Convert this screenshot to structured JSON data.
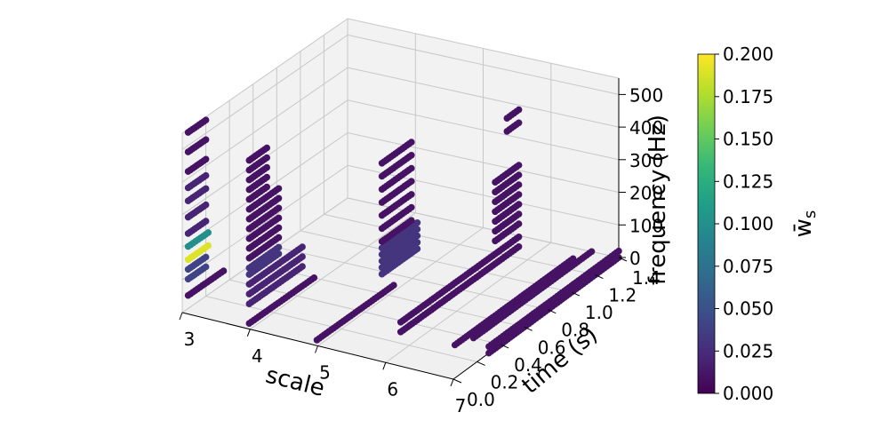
{
  "chart_data": {
    "type": "scatter",
    "projection": "3d",
    "title": "",
    "xlabel": "scale",
    "ylabel": "time (s)",
    "zlabel": "frequency (Hz)",
    "xlim": [
      3,
      7
    ],
    "ylim": [
      0.0,
      1.4
    ],
    "zlim": [
      0,
      550
    ],
    "xticks": [
      "3",
      "4",
      "5",
      "6",
      "7"
    ],
    "yticks": [
      "0.0",
      "0.2",
      "0.4",
      "0.6",
      "0.8",
      "1.0",
      "1.2",
      "1.4"
    ],
    "zticks": [
      "0",
      "100",
      "200",
      "300",
      "400",
      "500"
    ],
    "grid": true,
    "colormap": "viridis",
    "colorbar": {
      "label": "w̄_s",
      "range": [
        0.0,
        0.2
      ],
      "ticks": [
        "0.000",
        "0.025",
        "0.050",
        "0.075",
        "0.100",
        "0.125",
        "0.150",
        "0.175",
        "0.200"
      ],
      "colors": [
        "#440154",
        "#482878",
        "#3e4989",
        "#31688e",
        "#26828e",
        "#1f9e89",
        "#35b779",
        "#6ece58",
        "#b5de2b",
        "#fde725"
      ]
    },
    "clusters": [
      {
        "scale": 3.0,
        "time": [
          0.05,
          0.2
        ],
        "freq": [
          420,
          480,
          540
        ],
        "w": 0.01
      },
      {
        "scale": 3.0,
        "time": [
          0.05,
          0.2
        ],
        "freq": [
          230,
          280,
          330,
          370
        ],
        "w": 0.02
      },
      {
        "scale": 3.0,
        "time": [
          0.05,
          0.22
        ],
        "freq": [
          190
        ],
        "w": 0.1
      },
      {
        "scale": 3.0,
        "time": [
          0.05,
          0.22
        ],
        "freq": [
          150
        ],
        "w": 0.19
      },
      {
        "scale": 3.0,
        "time": [
          0.05,
          0.2
        ],
        "freq": [
          120,
          90
        ],
        "w": 0.04
      },
      {
        "scale": 3.0,
        "time": [
          0.05,
          0.35
        ],
        "freq": [
          40
        ],
        "w": 0.01
      },
      {
        "scale": 3.9,
        "time": [
          0.05,
          0.2
        ],
        "freq": [
          380,
          410,
          440,
          470,
          500
        ],
        "w": 0.01
      },
      {
        "scale": 3.9,
        "time": [
          0.05,
          0.3
        ],
        "freq": [
          200,
          230,
          260,
          290,
          320,
          350
        ],
        "w": 0.01
      },
      {
        "scale": 3.9,
        "time": [
          0.05,
          0.3
        ],
        "freq": [
          150,
          170
        ],
        "w": 0.03
      },
      {
        "scale": 3.9,
        "time": [
          0.05,
          0.5
        ],
        "freq": [
          60,
          90,
          120
        ],
        "w": 0.02
      },
      {
        "scale": 3.9,
        "time": [
          0.05,
          0.6
        ],
        "freq": [
          0
        ],
        "w": 0.01
      },
      {
        "scale": 4.9,
        "time": [
          0.6,
          0.85
        ],
        "freq": [
          160,
          200,
          240,
          280,
          320,
          360,
          400
        ],
        "w": 0.01
      },
      {
        "scale": 4.9,
        "time": [
          0.6,
          0.9
        ],
        "freq": [
          60,
          80,
          100,
          120,
          140
        ],
        "w": 0.03
      },
      {
        "scale": 4.9,
        "time": [
          0.05,
          0.7
        ],
        "freq": [
          0
        ],
        "w": 0.01
      },
      {
        "scale": 5.7,
        "time": [
          1.1,
          1.3
        ],
        "freq": [
          70,
          100,
          130,
          160,
          190,
          220,
          250
        ],
        "w": 0.01
      },
      {
        "scale": 5.7,
        "time": [
          1.2,
          1.3
        ],
        "freq": [
          380,
          420
        ],
        "w": 0.01
      },
      {
        "scale": 5.7,
        "time": [
          0.3,
          1.3
        ],
        "freq": [
          0,
          30
        ],
        "w": 0.01
      },
      {
        "scale": 6.5,
        "time": [
          0.3,
          1.3
        ],
        "freq": [
          0
        ],
        "w": 0.01
      },
      {
        "scale": 6.6,
        "time": [
          0.4,
          1.4
        ],
        "freq": [
          0
        ],
        "w": 0.01
      },
      {
        "scale": 7.0,
        "time": [
          0.3,
          1.4
        ],
        "freq": [
          0,
          20
        ],
        "w": 0.01
      }
    ]
  }
}
